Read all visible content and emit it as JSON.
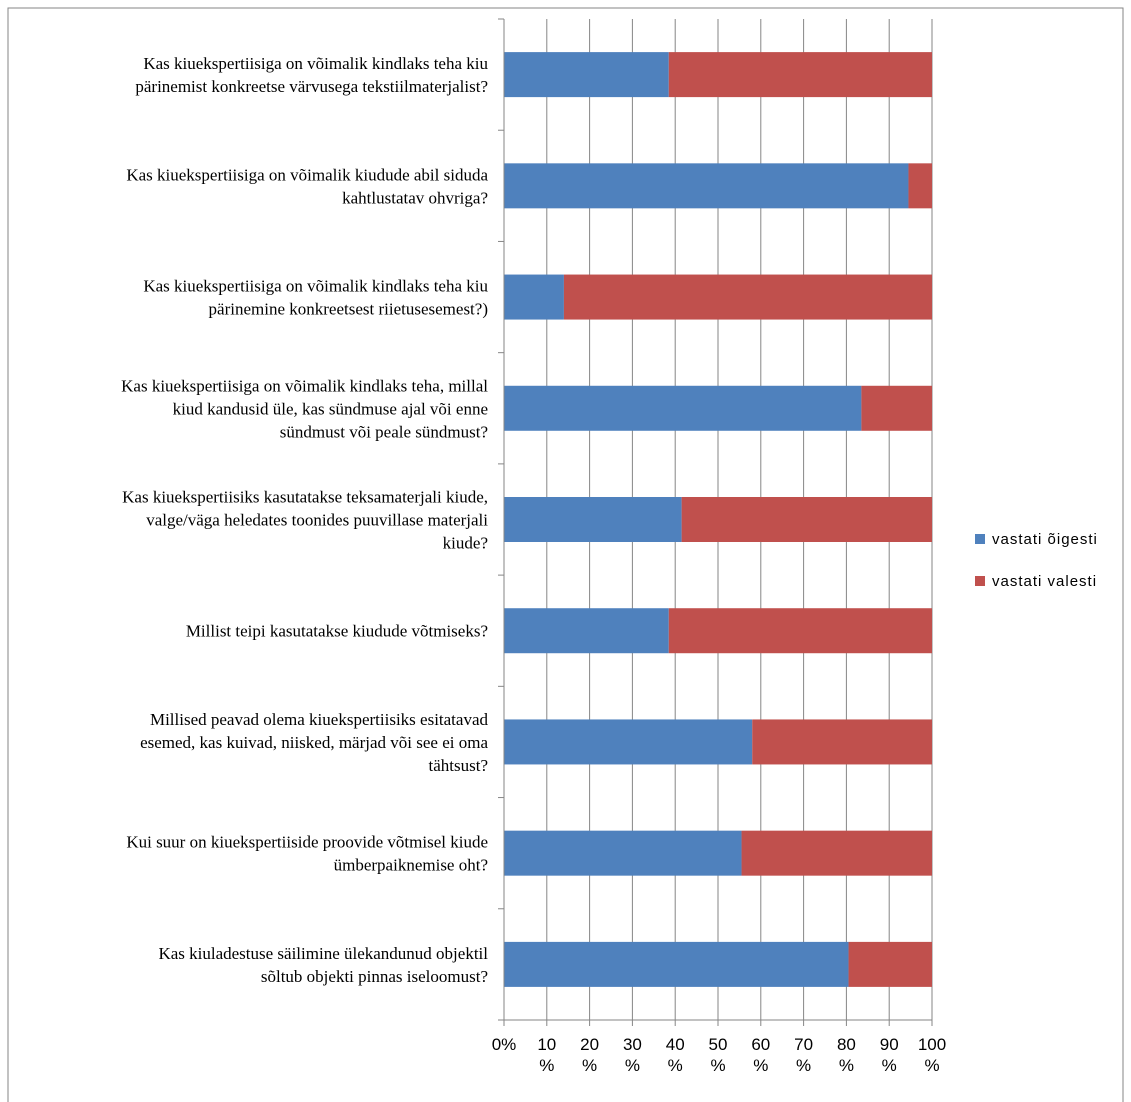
{
  "chart_data": {
    "type": "bar",
    "orientation": "horizontal",
    "stacked": true,
    "percent_stacked": true,
    "categories": [
      [
        "Kas kiuekspertiisiga on võimalik kindlaks teha kiu",
        "pärinemist konkreetse värvusega tekstiilmaterjalist?"
      ],
      [
        "Kas kiuekspertiisiga on võimalik kiudude abil siduda",
        "kahtlustatav ohvriga?"
      ],
      [
        "Kas kiuekspertiisiga on võimalik kindlaks teha kiu",
        "pärinemine konkreetsest riietusesemest?)"
      ],
      [
        "Kas kiuekspertiisiga on võimalik kindlaks teha, millal",
        "kiud kandusid üle, kas sündmuse ajal või enne",
        "sündmust või peale sündmust?"
      ],
      [
        "Kas kiuekspertiisiks kasutatakse teksamaterjali kiude,",
        "valge/väga heledates toonides puuvillase materjali",
        "kiude?"
      ],
      [
        "Millist teipi kasutatakse kiudude võtmiseks?"
      ],
      [
        "Millised peavad olema kiuekspertiisiks esitatavad",
        "esemed, kas kuivad, niisked, märjad või see ei oma",
        "tähtsust?"
      ],
      [
        "Kui suur on kiuekspertiiside proovide võtmisel kiude",
        "ümberpaiknemise oht?"
      ],
      [
        "Kas kiuladestuse säilimine ülekandunud objektil",
        "sõltub objekti pinnas iseloomust?"
      ]
    ],
    "series": [
      {
        "name": "vastati õigesti",
        "color": "#4F81BD",
        "values": [
          38.5,
          94.5,
          14,
          83.5,
          41.5,
          38.5,
          58,
          55.5,
          80.5
        ]
      },
      {
        "name": "vastati valesti",
        "color": "#C0504D",
        "values": [
          61.5,
          5.5,
          86,
          16.5,
          58.5,
          61.5,
          42,
          44.5,
          19.5
        ]
      }
    ],
    "x_ticks": [
      "0%",
      "10 %",
      "20 %",
      "30 %",
      "40 %",
      "50 %",
      "60 %",
      "70 %",
      "80 %",
      "90 %",
      "100 %"
    ],
    "xlim": [
      0,
      100
    ],
    "grid": true,
    "legend_position": "right",
    "title": "",
    "xlabel": "",
    "ylabel": ""
  },
  "colors": {
    "grid": "#868686",
    "border": "#868686"
  }
}
